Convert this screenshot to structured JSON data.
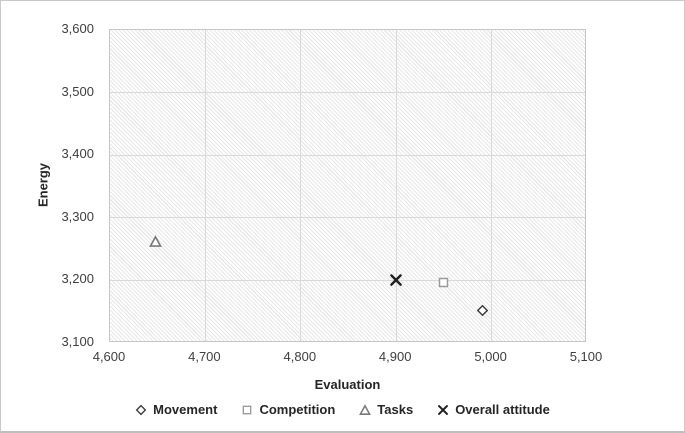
{
  "chart_data": {
    "type": "scatter",
    "title": "",
    "xlabel": "Evaluation",
    "ylabel": "Energy",
    "xlim": [
      4600,
      5100
    ],
    "ylim": [
      3100,
      3600
    ],
    "x_ticks": [
      4600,
      4700,
      4800,
      4900,
      5000,
      5100
    ],
    "y_ticks": [
      3100,
      3200,
      3300,
      3400,
      3500,
      3600
    ],
    "grid": true,
    "plot_background": "light-diagonal-hatch",
    "legend_position": "bottom",
    "series": [
      {
        "name": "Movement",
        "marker": "diamond",
        "color": "#3d3d3d",
        "points": [
          {
            "x": 4990,
            "y": 3152
          }
        ]
      },
      {
        "name": "Competition",
        "marker": "square",
        "color": "#9b9b9b",
        "points": [
          {
            "x": 4950,
            "y": 3196
          }
        ]
      },
      {
        "name": "Tasks",
        "marker": "triangle",
        "color": "#7a7a7a",
        "points": [
          {
            "x": 4648,
            "y": 3262
          }
        ]
      },
      {
        "name": "Overall attitude",
        "marker": "x",
        "color": "#1f1f1f",
        "points": [
          {
            "x": 4900,
            "y": 3200
          }
        ]
      }
    ]
  },
  "colors": {
    "gridline": "#d9d9d9",
    "plot_border": "#c6c6c6",
    "hatch_line": "#e8e8e8",
    "tick_text": "#3f3f3f",
    "title_text": "#262626",
    "figure_border": "#c9c9c9",
    "marker_fill": "#ffffff"
  }
}
